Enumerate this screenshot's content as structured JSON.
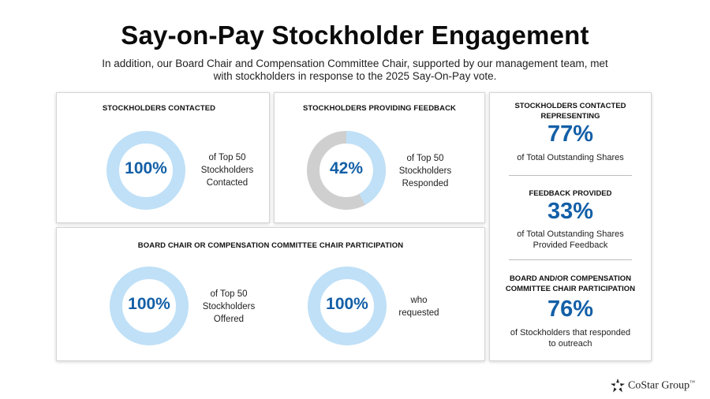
{
  "header": {
    "title": "Say-on-Pay Stockholder Engagement",
    "subtitle": "In addition, our Board Chair and Compensation Committee Chair, supported by our management team, met with stockholders in response to the 2025 Say-On-Pay vote."
  },
  "colors": {
    "accent": "#135fa7",
    "ring_light": "#bfe0f7",
    "ring_gray": "#cfcfcf"
  },
  "contacted": {
    "heading": "STOCKHOLDERS CONTACTED",
    "value_label": "100%",
    "percent": 100,
    "desc": [
      "of Top 50",
      "Stockholders",
      "Contacted"
    ]
  },
  "feedback": {
    "heading": "STOCKHOLDERS PROVIDING FEEDBACK",
    "value_label": "42%",
    "percent": 42,
    "desc": [
      "of Top 50",
      "Stockholders",
      "Responded"
    ]
  },
  "participation": {
    "heading": "BOARD CHAIR OR COMPENSATION COMMITTEE CHAIR PARTICIPATION",
    "offered": {
      "value_label": "100%",
      "percent": 100,
      "desc": [
        "of Top 50",
        "Stockholders",
        "Offered"
      ]
    },
    "requested": {
      "value_label": "100%",
      "percent": 100,
      "desc": [
        "who",
        "requested"
      ]
    }
  },
  "stats": {
    "representing": {
      "heading_line1": "STOCKHOLDERS CONTACTED",
      "heading_line2": "REPRESENTING",
      "value": "77%",
      "sub": "of Total Outstanding Shares"
    },
    "feedback": {
      "heading": "FEEDBACK PROVIDED",
      "value": "33%",
      "sub_line1": "of Total Outstanding Shares",
      "sub_line2": "Provided Feedback"
    },
    "participation": {
      "heading_line1": "BOARD AND/OR COMPENSATION",
      "heading_line2": "COMMITTEE CHAIR PARTICIPATION",
      "value": "76%",
      "sub_line1": "of Stockholders that responded",
      "sub_line2": "to outreach"
    }
  },
  "footer": {
    "logo_text": "CoStar Group",
    "logo_mark": "™"
  }
}
